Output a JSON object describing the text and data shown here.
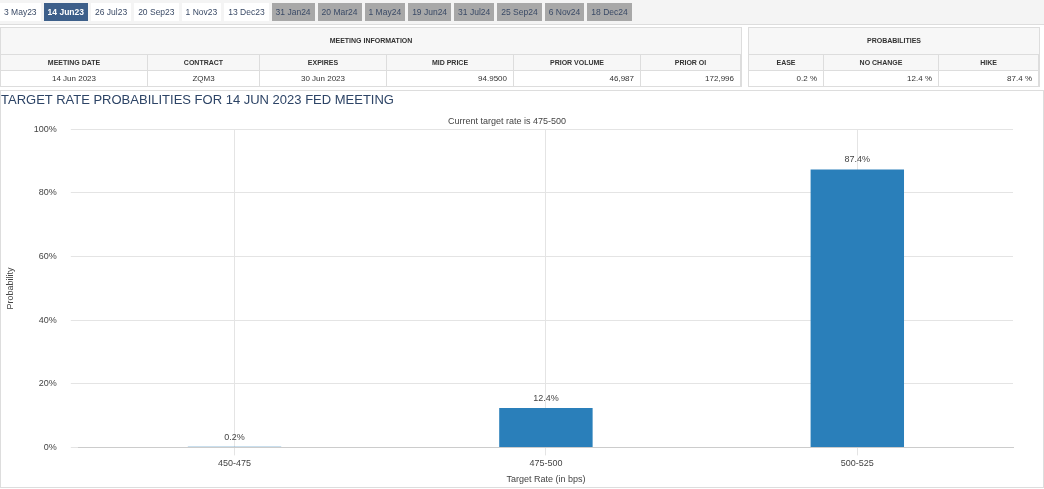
{
  "chart_data": [
    {
      "type": "other",
      "annotations": [
        "3 May23",
        "14 Jun23",
        "26 Jul23",
        "20 Sep23",
        "1 Nov23",
        "13 Dec23",
        "31 Jan24",
        "20 Mar24",
        "1 May24",
        "19 Jun24",
        "31 Jul24",
        "25 Sep24",
        "6 Nov24",
        "18 Dec24",
        "MEETING INFORMATION",
        "PROBABILITIES",
        "MEETING DATE",
        "CONTRACT",
        "EXPIRES",
        "MID PRICE",
        "PRIOR VOLUME",
        "PRIOR OI",
        "EASE",
        "NO CHANGE",
        "HIKE",
        "14 Jun 2023",
        "ZQM3",
        "30 Jun 2023",
        "94.9500",
        "46,987",
        "172,996",
        "0.2 %",
        "12.4 %",
        "87.4 %"
      ]
    },
    {
      "type": "bar",
      "title": "TARGET RATE PROBABILITIES FOR 14 JUN 2023 FED MEETING",
      "subtitle": "Current target rate is 475-500",
      "xlabel": "Target Rate (in bps)",
      "ylabel": "Probability",
      "categories": [
        "450-475",
        "475-500",
        "500-525"
      ],
      "values": [
        0.2,
        12.4,
        87.4
      ],
      "value_labels": [
        "0.2%",
        "12.4%",
        "87.4%"
      ],
      "color": "#2a7fba",
      "ylim": [
        0,
        100
      ],
      "yticks": [
        {
          "value": 0,
          "label": "0%"
        },
        {
          "value": 20,
          "label": "20%"
        },
        {
          "value": 40,
          "label": "40%"
        },
        {
          "value": 60,
          "label": "60%"
        },
        {
          "value": 80,
          "label": "80%"
        },
        {
          "value": 100,
          "label": "100%"
        }
      ],
      "grid": true,
      "legend": false
    }
  ]
}
